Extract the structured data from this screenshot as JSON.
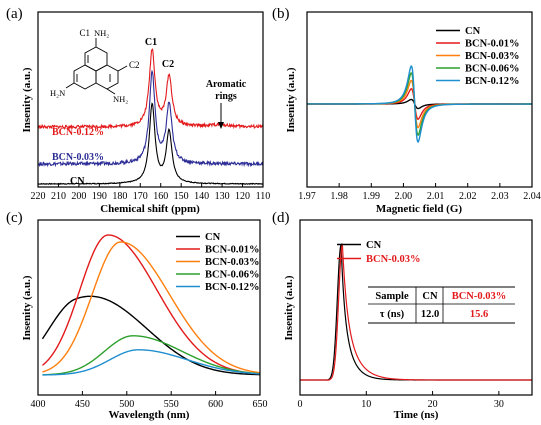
{
  "chart_data": [
    {
      "panel": "(a)",
      "type": "line",
      "xlabel": "Chemical shift (ppm)",
      "ylabel": "Insenity (a.u.)",
      "x_reversed": true,
      "xlim": [
        220,
        110
      ],
      "x_ticks": [
        "220",
        "210",
        "200",
        "190",
        "180",
        "170",
        "160",
        "150",
        "140",
        "130",
        "120",
        "110"
      ],
      "peak_labels": [
        "C1",
        "C2"
      ],
      "peaks_ppm": [
        164.2,
        155.9
      ],
      "structure_labels": {
        "c1": "C1",
        "c2": "C2",
        "n": "N",
        "nh2": "NH₂",
        "h2n": "H₂N"
      },
      "annotation": "Aromatic rings",
      "annotation_ppm": 131,
      "series": [
        {
          "name": "CN",
          "color": "#000000",
          "peak_heights": [
            0.95,
            0.62
          ]
        },
        {
          "name": "BCN-0.03%",
          "color": "#2c2c96",
          "peak_heights": [
            1.0,
            0.65
          ]
        },
        {
          "name": "BCN-0.12%",
          "color": "#e31a1c",
          "peak_heights": [
            0.92,
            0.6
          ]
        }
      ]
    },
    {
      "panel": "(b)",
      "type": "line",
      "xlabel": "Magnetic field (G)",
      "ylabel": "Insenity (a.u.)",
      "xlim": [
        1.97,
        2.04
      ],
      "x_ticks": [
        "1.97",
        "1.98",
        "1.99",
        "2.00",
        "2.01",
        "2.02",
        "2.03",
        "2.04"
      ],
      "series": [
        {
          "name": "CN",
          "color": "#000000",
          "amplitude": 0.12
        },
        {
          "name": "BCN-0.01%",
          "color": "#e31a1c",
          "amplitude": 0.4
        },
        {
          "name": "BCN-0.03%",
          "color": "#ff7f0e",
          "amplitude": 0.62
        },
        {
          "name": "BCN-0.06%",
          "color": "#2ca02c",
          "amplitude": 0.82
        },
        {
          "name": "BCN-0.12%",
          "color": "#1f8fcf",
          "amplitude": 1.0
        }
      ]
    },
    {
      "panel": "(c)",
      "type": "line",
      "xlabel": "Wavelength (nm)",
      "ylabel": "Insenity (a.u.)",
      "xlim": [
        400,
        650
      ],
      "x_ticks": [
        "400",
        "450",
        "500",
        "550",
        "600",
        "650"
      ],
      "series": [
        {
          "name": "CN",
          "color": "#000000",
          "peak_nm": 442,
          "height": 0.44
        },
        {
          "name": "BCN-0.01%",
          "color": "#e31a1c",
          "peak_nm": 479,
          "height": 1.0
        },
        {
          "name": "BCN-0.03%",
          "color": "#ff7f0e",
          "peak_nm": 493,
          "height": 0.95
        },
        {
          "name": "BCN-0.06%",
          "color": "#2ca02c",
          "peak_nm": 507,
          "height": 0.28
        },
        {
          "name": "BCN-0.12%",
          "color": "#1f8fcf",
          "peak_nm": 513,
          "height": 0.18
        }
      ]
    },
    {
      "panel": "(d)",
      "type": "line",
      "xlabel": "Time (ns)",
      "ylabel": "Insenity (a.u.)",
      "xlim": [
        0,
        35
      ],
      "x_ticks": [
        "0",
        "10",
        "20",
        "30"
      ],
      "series": [
        {
          "name": "CN",
          "color": "#000000",
          "peak_ns": 6.2,
          "tau_ns": 12.0
        },
        {
          "name": "BCN-0.03%",
          "color": "#e31a1c",
          "peak_ns": 6.4,
          "tau_ns": 15.6
        }
      ],
      "table": {
        "header": [
          "Sample",
          "CN",
          "BCN-0.03%"
        ],
        "row_label": "τ (ns)",
        "row_values": [
          "12.0",
          "15.6"
        ]
      }
    }
  ],
  "panel_labels": [
    "(a)",
    "(b)",
    "(c)",
    "(d)"
  ]
}
